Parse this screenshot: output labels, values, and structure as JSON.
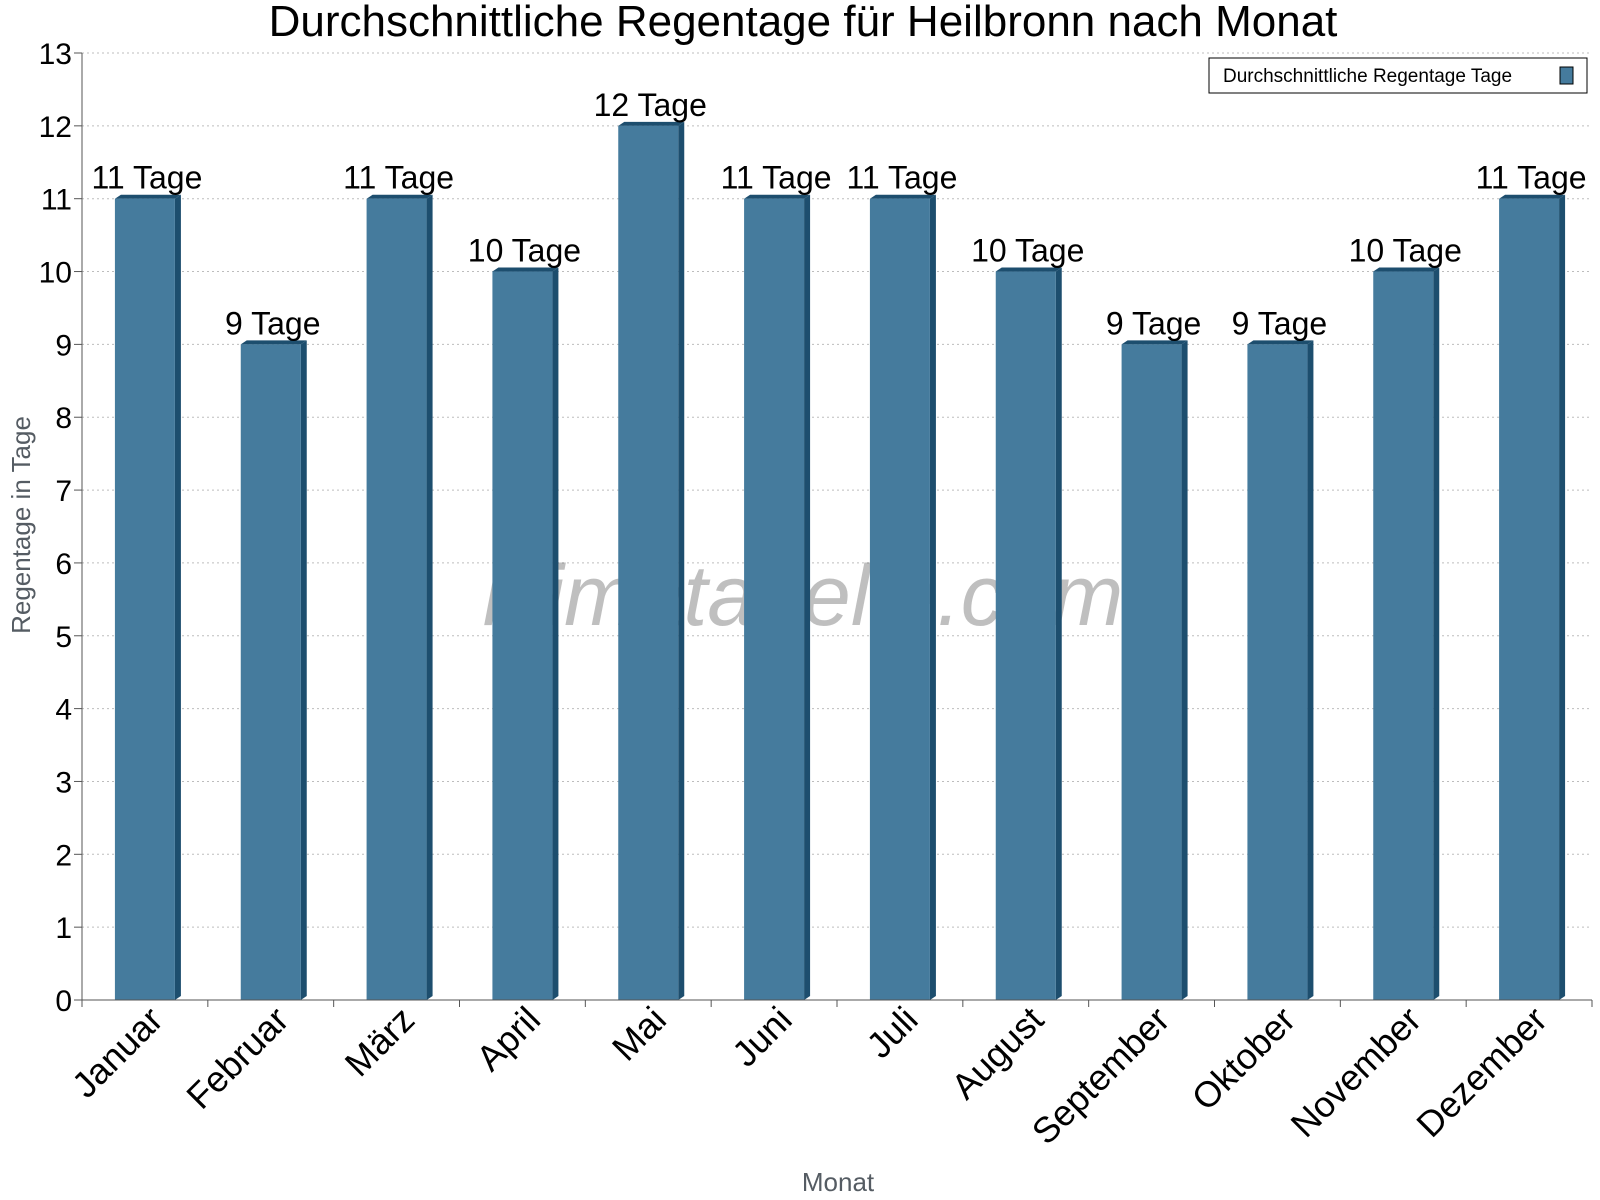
{
  "chart_data": {
    "type": "bar",
    "title": "Durchschnittliche Regentage für Heilbronn nach Monat",
    "xlabel": "Monat",
    "ylabel": "Regentage in Tage",
    "categories": [
      "Januar",
      "Februar",
      "März",
      "April",
      "Mai",
      "Juni",
      "Juli",
      "August",
      "September",
      "Oktober",
      "November",
      "Dezember"
    ],
    "series": [
      {
        "name": "Durchschnittliche Regentage Tage",
        "values": [
          11,
          9,
          11,
          10,
          12,
          11,
          11,
          10,
          9,
          9,
          10,
          11
        ],
        "data_labels": [
          "11 Tage",
          "9 Tage",
          "11 Tage",
          "10 Tage",
          "12 Tage",
          "11 Tage",
          "11 Tage",
          "10 Tage",
          "9 Tage",
          "9 Tage",
          "10 Tage",
          "11 Tage"
        ],
        "color": "#457b9d",
        "side_color": "#1d4e6e"
      }
    ],
    "ylim": [
      0,
      13
    ],
    "yticks": [
      "0",
      "1",
      "2",
      "3",
      "4",
      "5",
      "6",
      "7",
      "8",
      "9",
      "10",
      "11",
      "12",
      "13"
    ],
    "grid": true,
    "legend_position": "top-right",
    "watermark": "klimatabelle.com"
  }
}
